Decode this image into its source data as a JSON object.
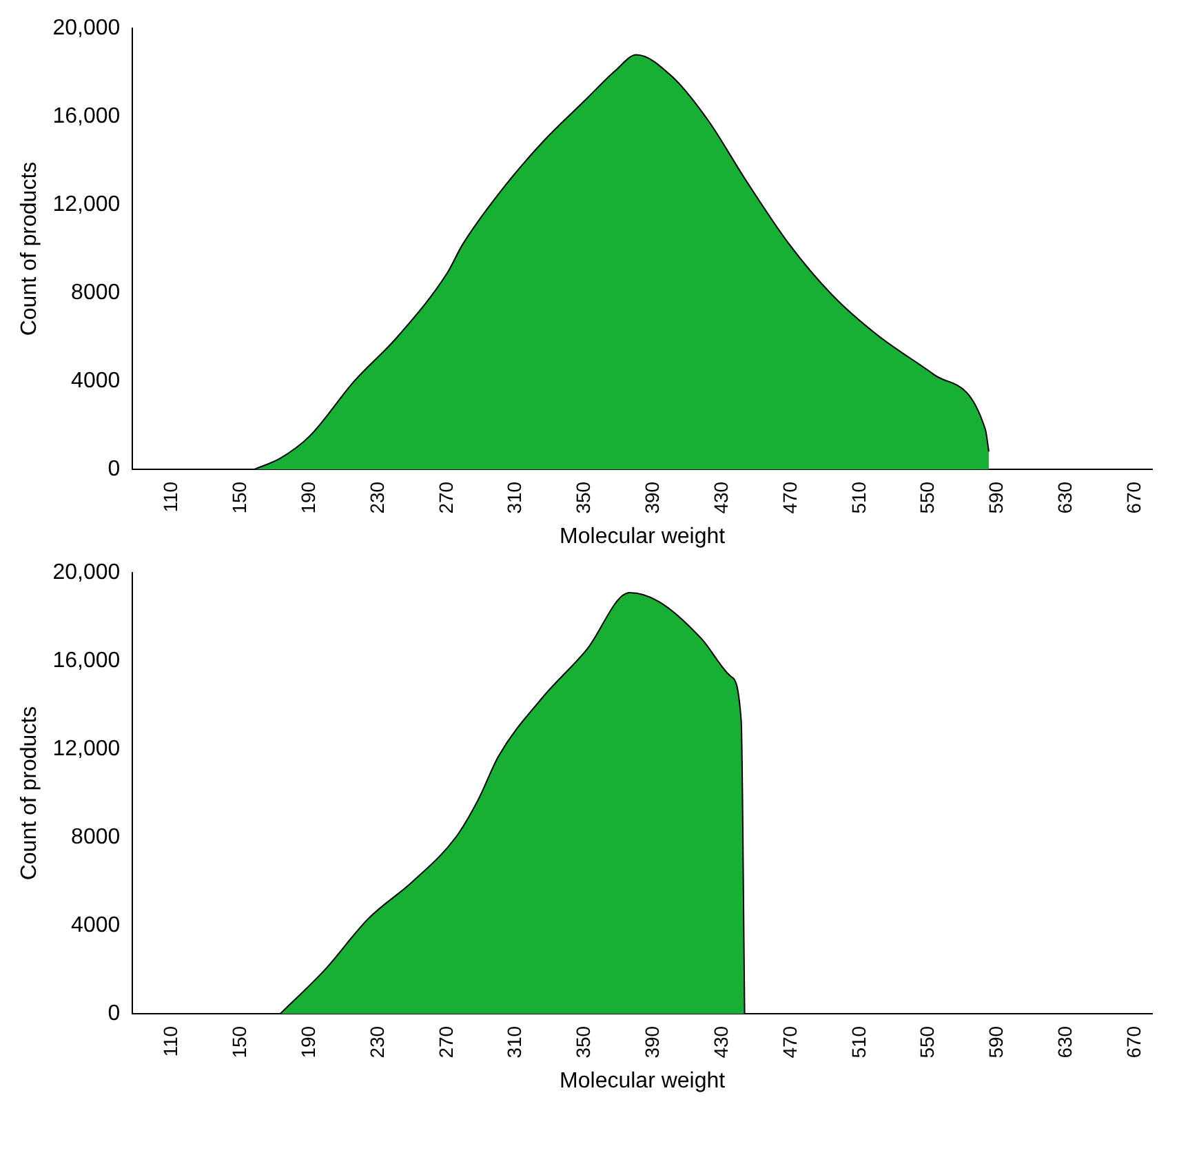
{
  "chart_data": [
    {
      "type": "area",
      "xlabel": "Molecular weight",
      "ylabel": "Count of products",
      "color": "#18b034",
      "xlim": [
        87,
        680
      ],
      "xticks": [
        110,
        150,
        190,
        230,
        270,
        310,
        350,
        390,
        430,
        470,
        510,
        550,
        590,
        630,
        670
      ],
      "ylim": [
        0,
        20000
      ],
      "yticks": [
        0,
        4000,
        8000,
        {
          "value": 12000,
          "label": "12,000"
        },
        {
          "value": 16000,
          "label": "16,000"
        },
        {
          "value": 20000,
          "label": "20,000"
        }
      ],
      "x": [
        158,
        173,
        190,
        216,
        241,
        270,
        279,
        300,
        325,
        351,
        368,
        380,
        401,
        422,
        443,
        469,
        494,
        520,
        553,
        583,
        585
      ],
      "values": [
        0,
        500,
        1500,
        4000,
        6000,
        8900,
        10200,
        12500,
        14800,
        16800,
        18100,
        18800,
        17800,
        15800,
        13200,
        10200,
        7900,
        6100,
        4300,
        1800,
        800
      ]
    },
    {
      "type": "area",
      "xlabel": "Molecular weight",
      "ylabel": "Count of products",
      "color": "#18b034",
      "xlim": [
        87,
        680
      ],
      "xticks": [
        110,
        150,
        190,
        230,
        270,
        310,
        350,
        390,
        430,
        470,
        510,
        550,
        590,
        630,
        670
      ],
      "ylim": [
        0,
        20000
      ],
      "yticks": [
        0,
        4000,
        8000,
        {
          "value": 12000,
          "label": "12,000"
        },
        {
          "value": 16000,
          "label": "16,000"
        },
        {
          "value": 20000,
          "label": "20,000"
        }
      ],
      "x": [
        173,
        199,
        224,
        250,
        275,
        288,
        300,
        325,
        351,
        376,
        393,
        418,
        435,
        441,
        443
      ],
      "values": [
        0,
        2000,
        4300,
        6000,
        8000,
        9700,
        11700,
        14300,
        16500,
        19100,
        18700,
        17000,
        15300,
        13300,
        0
      ]
    }
  ]
}
